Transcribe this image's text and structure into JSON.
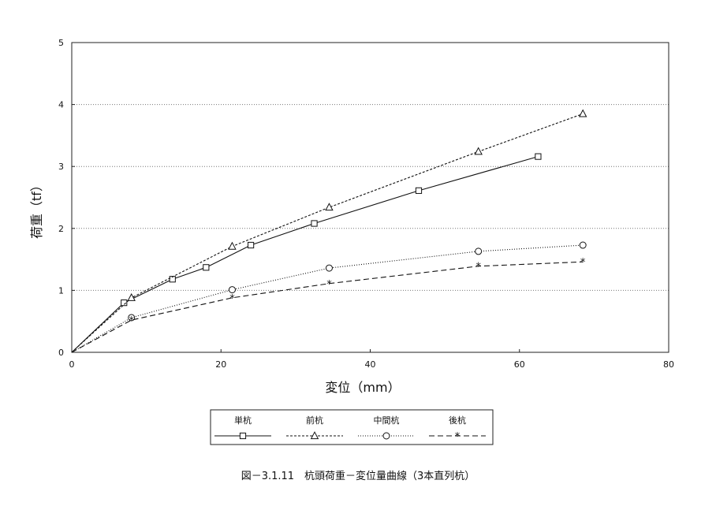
{
  "chart_data": {
    "type": "line",
    "title": "",
    "caption": "図－3.1.11　杭頭荷重－変位量曲線（3本直列杭）",
    "xlabel": "変位（mm）",
    "ylabel": "荷重（tf）",
    "xlim": [
      0,
      80
    ],
    "ylim": [
      0,
      5
    ],
    "x_ticks": [
      0,
      20,
      40,
      60,
      80
    ],
    "y_ticks": [
      0,
      1,
      2,
      3,
      4,
      5
    ],
    "grid": "horizontal dotted",
    "legend_position": "bottom",
    "series": [
      {
        "name": "単杭",
        "line_style": "solid",
        "marker": "square",
        "color": "#111111",
        "points": [
          [
            0,
            0
          ],
          [
            7,
            0.8
          ],
          [
            13.5,
            1.18
          ],
          [
            18,
            1.37
          ],
          [
            24,
            1.73
          ],
          [
            32.5,
            2.08
          ],
          [
            46.5,
            2.61
          ],
          [
            62.5,
            3.16
          ]
        ]
      },
      {
        "name": "前杭",
        "line_style": "dashed-fine",
        "marker": "triangle",
        "color": "#111111",
        "points": [
          [
            0,
            0
          ],
          [
            8,
            0.88
          ],
          [
            21.5,
            1.71
          ],
          [
            34.5,
            2.34
          ],
          [
            54.5,
            3.24
          ],
          [
            68.5,
            3.85
          ]
        ]
      },
      {
        "name": "中間杭",
        "line_style": "dotted",
        "marker": "circle",
        "color": "#111111",
        "points": [
          [
            0,
            0
          ],
          [
            8,
            0.56
          ],
          [
            21.5,
            1.01
          ],
          [
            34.5,
            1.36
          ],
          [
            54.5,
            1.63
          ],
          [
            68.5,
            1.73
          ]
        ]
      },
      {
        "name": "後杭",
        "line_style": "dashed",
        "marker": "asterisk",
        "color": "#111111",
        "points": [
          [
            0,
            0
          ],
          [
            8,
            0.52
          ],
          [
            21.5,
            0.88
          ],
          [
            34.5,
            1.11
          ],
          [
            54.5,
            1.39
          ],
          [
            68.5,
            1.46
          ]
        ]
      }
    ]
  }
}
